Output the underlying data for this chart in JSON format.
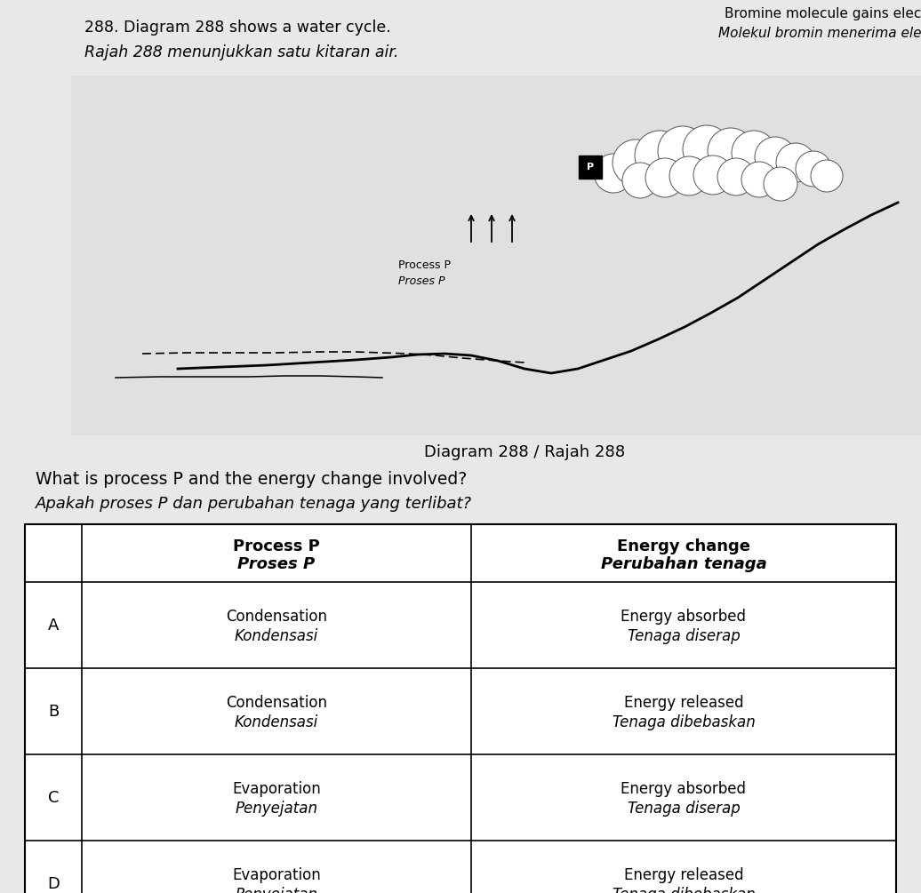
{
  "bg_color": "#e8e8e8",
  "title_text_1": "288. Diagram 288 shows a water cycle.",
  "title_text_2": "Rajah 288 menunjukkan satu kitaran air.",
  "top_right_text_1": "Bromine molecule gains elec",
  "top_right_text_2": "Molekul bromin menerima ele",
  "diagram_caption": "Diagram 288 / Rajah 288",
  "question_en": "What is process P and the energy change involved?",
  "question_ms": "Apakah proses P dan perubahan tenaga yang terlibat?",
  "col_header_1_en": "Process P",
  "col_header_1_ms": "Proses P",
  "col_header_2_en": "Energy change",
  "col_header_2_ms": "Perubahan tenaga",
  "rows": [
    {
      "label": "A",
      "process_en": "Condensation",
      "process_ms": "Kondensasi",
      "energy_en": "Energy absorbed",
      "energy_ms": "Tenaga diserap"
    },
    {
      "label": "B",
      "process_en": "Condensation",
      "process_ms": "Kondensasi",
      "energy_en": "Energy released",
      "energy_ms": "Tenaga dibebaskan"
    },
    {
      "label": "C",
      "process_en": "Evaporation",
      "process_ms": "Penyejatan",
      "energy_en": "Energy absorbed",
      "energy_ms": "Tenaga diserap"
    },
    {
      "label": "D",
      "process_en": "Evaporation",
      "process_ms": "Penyejatan",
      "energy_en": "Energy released",
      "energy_ms": "Tenaga dibebaskan"
    }
  ],
  "process_label_en": "Process P",
  "process_label_ms": "Proses P"
}
